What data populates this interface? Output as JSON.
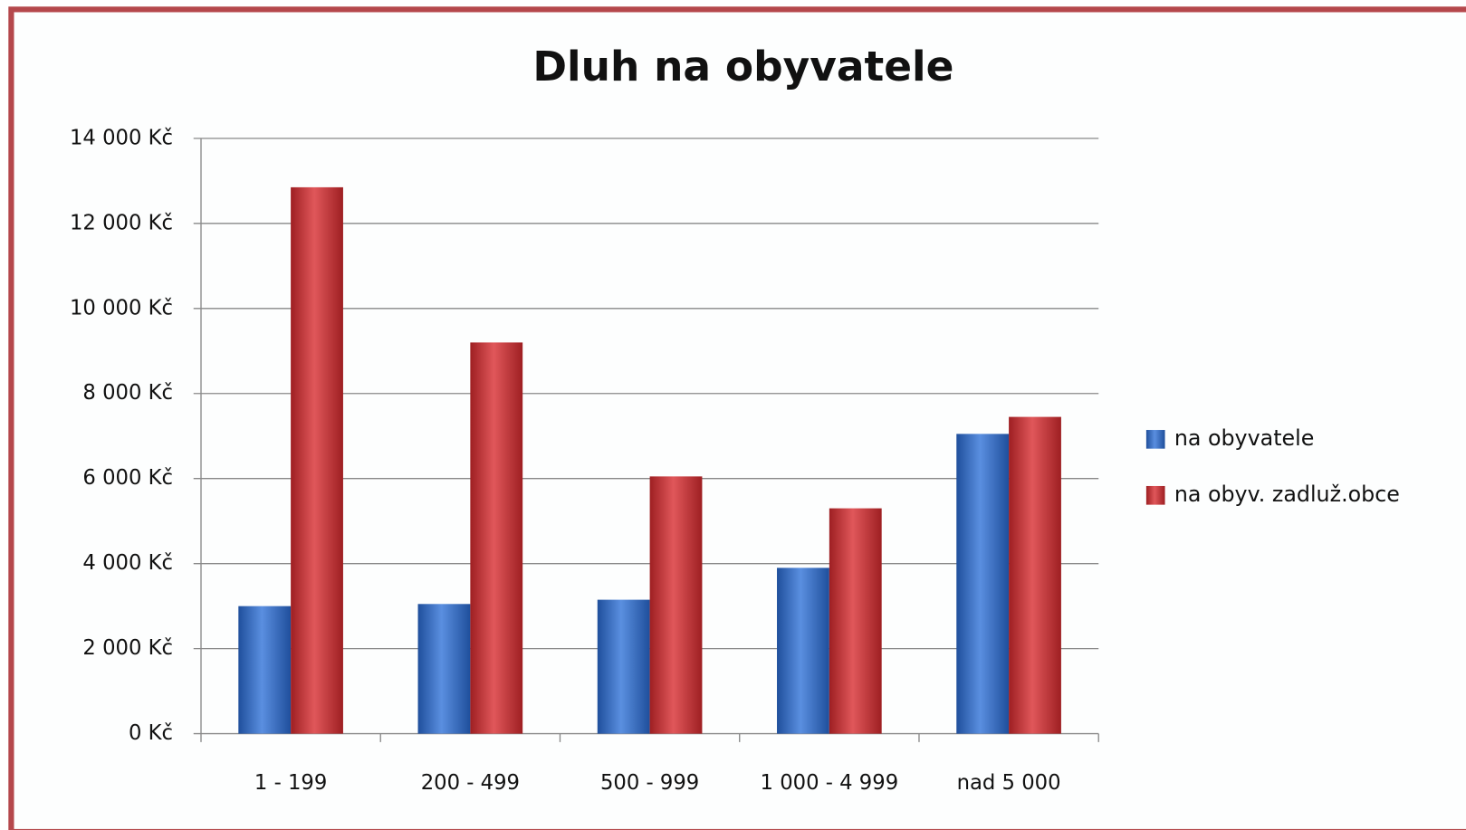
{
  "chart_data": {
    "type": "bar",
    "title": "Dluh na obyvatele",
    "categories": [
      "1 - 199",
      "200 - 499",
      "500 - 999",
      "1 000 - 4 999",
      "nad 5 000"
    ],
    "series": [
      {
        "name": "na obyvatele",
        "color": "#3a6fc4",
        "values": [
          3000,
          3050,
          3150,
          3900,
          7050
        ]
      },
      {
        "name": "na obyv. zadluž.obce",
        "color": "#c8373a",
        "values": [
          12850,
          9200,
          6050,
          5300,
          7450
        ]
      }
    ],
    "ylim": [
      0,
      14000
    ],
    "yticks": [
      {
        "value": 0,
        "label": "0 Kč"
      },
      {
        "value": 2000,
        "label": "2 000 Kč"
      },
      {
        "value": 4000,
        "label": "4 000 Kč"
      },
      {
        "value": 6000,
        "label": "6 000 Kč"
      },
      {
        "value": 8000,
        "label": "8 000 Kč"
      },
      {
        "value": 10000,
        "label": "10 000 Kč"
      },
      {
        "value": 12000,
        "label": "12 000 Kč"
      },
      {
        "value": 14000,
        "label": "14 000 Kč"
      }
    ],
    "grid": true,
    "legend": "right"
  }
}
